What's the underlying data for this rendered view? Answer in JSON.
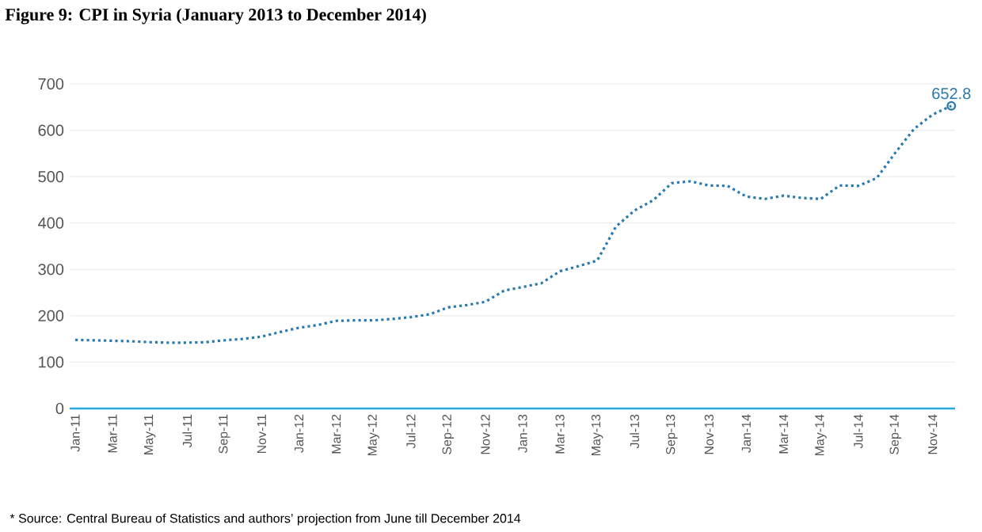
{
  "chart_data": {
    "type": "line",
    "title": "Figure 9: CPI in Syria (January 2013 to December 2014)",
    "categories": [
      "Jan-11",
      null,
      "Mar-11",
      null,
      "May-11",
      null,
      "Jul-11",
      null,
      "Sep-11",
      null,
      "Nov-11",
      null,
      "Jan-12",
      null,
      "Mar-12",
      null,
      "May-12",
      null,
      "Jul-12",
      null,
      "Sep-12",
      null,
      "Nov-12",
      null,
      "Jan-13",
      null,
      "Mar-13",
      null,
      "May-13",
      null,
      "Jul-13",
      null,
      "Sep-13",
      null,
      "Nov-13",
      null,
      "Jan-14",
      null,
      "Mar-14",
      null,
      "May-14",
      null,
      "Jul-14",
      null,
      "Sep-14",
      null,
      "Nov-14",
      null
    ],
    "series": [
      {
        "color": "#2a7ab0",
        "values": [
          148,
          147,
          146,
          145,
          143,
          142,
          142,
          143,
          147,
          150,
          155,
          165,
          174,
          180,
          189,
          190,
          190,
          193,
          197,
          203,
          218,
          223,
          230,
          254,
          262,
          270,
          296,
          307,
          319,
          392,
          427,
          449,
          486,
          490,
          481,
          480,
          457,
          452,
          459,
          454,
          452,
          481,
          480,
          497,
          552,
          603,
          634,
          652.8
        ],
        "value_labels": [
          null,
          null,
          null,
          null,
          null,
          null,
          null,
          null,
          null,
          null,
          null,
          null,
          null,
          null,
          null,
          null,
          null,
          null,
          null,
          null,
          null,
          null,
          null,
          null,
          null,
          null,
          null,
          null,
          null,
          null,
          null,
          null,
          null,
          null,
          null,
          null,
          null,
          null,
          null,
          null,
          null,
          null,
          null,
          null,
          null,
          null,
          null,
          "652.8"
        ]
      }
    ],
    "ylim": [
      0,
      700
    ],
    "yticks": [
      0,
      100,
      200,
      300,
      400,
      500,
      600,
      700
    ],
    "grid": "y",
    "line_style": "dotted",
    "annotations": [
      "* Source: Central Bureau of Statistics and authors’ projection from June till December 2014"
    ]
  }
}
